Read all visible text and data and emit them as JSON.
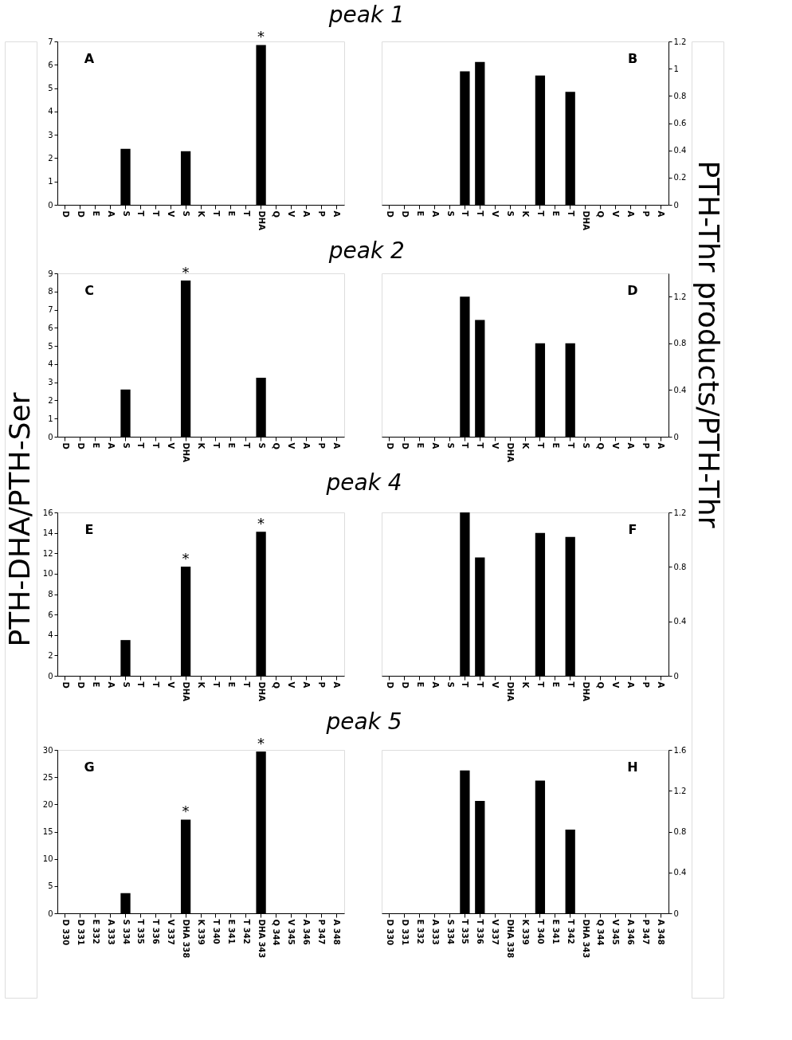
{
  "chart_data": [
    {
      "type": "bar",
      "title": "peak 1",
      "annotations": [
        "A"
      ],
      "categories": [
        "D",
        "D",
        "E",
        "A",
        "S",
        "T",
        "T",
        "V",
        "S",
        "K",
        "T",
        "E",
        "T",
        "DHA",
        "Q",
        "V",
        "A",
        "P",
        "A"
      ],
      "ylim": [
        0,
        7
      ],
      "yticks": [
        0,
        1,
        2,
        3,
        4,
        5,
        6,
        7
      ],
      "grid": false,
      "series": [
        {
          "color": "#000000",
          "values": [
            0,
            0,
            0,
            0,
            2.4,
            0,
            0,
            0,
            2.3,
            0,
            0,
            0,
            0,
            6.85,
            0,
            0,
            0,
            0,
            0
          ],
          "value_labels": [
            null,
            null,
            null,
            null,
            null,
            null,
            null,
            null,
            null,
            null,
            null,
            null,
            null,
            "*",
            null,
            null,
            null,
            null,
            null
          ]
        }
      ]
    },
    {
      "type": "bar",
      "annotations": [
        "B"
      ],
      "categories": [
        "D",
        "D",
        "E",
        "A",
        "S",
        "T",
        "T",
        "V",
        "S",
        "K",
        "T",
        "E",
        "T",
        "DHA",
        "Q",
        "V",
        "A",
        "P",
        "A"
      ],
      "y2lim": [
        0,
        1.2
      ],
      "y2ticks": [
        0,
        0.2,
        0.4,
        0.6,
        0.8,
        1,
        1.2
      ],
      "grid": false,
      "series": [
        {
          "axis": "y2",
          "color": "#000000",
          "values": [
            0,
            0,
            0,
            0,
            0,
            0.98,
            1.05,
            0,
            0,
            0,
            0.95,
            0,
            0.83,
            0,
            0,
            0,
            0,
            0,
            0
          ]
        }
      ]
    },
    {
      "type": "bar",
      "title": "peak 2",
      "ylabel": "PTH-DHA/PTH-Ser",
      "annotations": [
        "C"
      ],
      "categories": [
        "D",
        "D",
        "E",
        "A",
        "S",
        "T",
        "T",
        "V",
        "DHA",
        "K",
        "T",
        "E",
        "T",
        "S",
        "Q",
        "V",
        "A",
        "P",
        "A"
      ],
      "ylim": [
        0,
        9
      ],
      "yticks": [
        0,
        1,
        2,
        3,
        4,
        5,
        6,
        7,
        8,
        9
      ],
      "grid": false,
      "series": [
        {
          "color": "#000000",
          "values": [
            0,
            0,
            0,
            0,
            2.6,
            0,
            0,
            0,
            8.6,
            0,
            0,
            0,
            0,
            3.25,
            0,
            0,
            0,
            0,
            0
          ],
          "value_labels": [
            null,
            null,
            null,
            null,
            null,
            null,
            null,
            null,
            "*",
            null,
            null,
            null,
            null,
            null,
            null,
            null,
            null,
            null,
            null
          ]
        }
      ]
    },
    {
      "type": "bar",
      "y2label": "PTH-Thr products/PTH-Thr",
      "annotations": [
        "D"
      ],
      "categories": [
        "D",
        "D",
        "E",
        "A",
        "S",
        "T",
        "T",
        "V",
        "DHA",
        "K",
        "T",
        "E",
        "T",
        "S",
        "Q",
        "V",
        "A",
        "P",
        "A"
      ],
      "y2lim": [
        0,
        1.4
      ],
      "y2ticks": [
        0,
        0.4,
        0.8,
        1.2
      ],
      "grid": false,
      "series": [
        {
          "axis": "y2",
          "color": "#000000",
          "values": [
            0,
            0,
            0,
            0,
            0,
            1.2,
            1.0,
            0,
            0,
            0,
            0.8,
            0,
            0.8,
            0,
            0,
            0,
            0,
            0,
            0
          ]
        }
      ]
    },
    {
      "type": "bar",
      "title": "peak 4",
      "annotations": [
        "E"
      ],
      "categories": [
        "D",
        "D",
        "E",
        "A",
        "S",
        "T",
        "T",
        "V",
        "DHA",
        "K",
        "T",
        "E",
        "T",
        "DHA",
        "Q",
        "V",
        "A",
        "P",
        "A"
      ],
      "ylim": [
        0,
        16
      ],
      "yticks": [
        0,
        2,
        4,
        6,
        8,
        10,
        12,
        14,
        16
      ],
      "grid": false,
      "series": [
        {
          "color": "#000000",
          "values": [
            0,
            0,
            0,
            0,
            3.5,
            0,
            0,
            0,
            10.7,
            0,
            0,
            0,
            0,
            14.1,
            0,
            0,
            0,
            0,
            0
          ],
          "value_labels": [
            null,
            null,
            null,
            null,
            null,
            null,
            null,
            null,
            "*",
            null,
            null,
            null,
            null,
            "*",
            null,
            null,
            null,
            null,
            null
          ]
        }
      ]
    },
    {
      "type": "bar",
      "annotations": [
        "F"
      ],
      "categories": [
        "D",
        "D",
        "E",
        "A",
        "S",
        "T",
        "T",
        "V",
        "DHA",
        "K",
        "T",
        "E",
        "T",
        "DHA",
        "Q",
        "V",
        "A",
        "P",
        "A"
      ],
      "y2lim": [
        0,
        1.2
      ],
      "y2ticks": [
        0,
        0.4,
        0.8,
        1.2
      ],
      "grid": false,
      "series": [
        {
          "axis": "y2",
          "color": "#000000",
          "values": [
            0,
            0,
            0,
            0,
            0,
            1.2,
            0.87,
            0,
            0,
            0,
            1.05,
            0,
            1.02,
            0,
            0,
            0,
            0,
            0,
            0
          ]
        }
      ]
    },
    {
      "type": "bar",
      "title": "peak 5",
      "annotations": [
        "G"
      ],
      "categories": [
        "D 330",
        "D 331",
        "E 332",
        "A 333",
        "S 334",
        "T 335",
        "T 336",
        "V 337",
        "DHA 338",
        "K 339",
        "T 340",
        "E 341",
        "T 342",
        "DHA 343",
        "Q 344",
        "V 345",
        "A 346",
        "P 347",
        "A 348"
      ],
      "ylim": [
        0,
        30
      ],
      "yticks": [
        0,
        5,
        10,
        15,
        20,
        25,
        30
      ],
      "grid": false,
      "series": [
        {
          "color": "#000000",
          "values": [
            0,
            0,
            0,
            0,
            3.7,
            0,
            0,
            0,
            17.2,
            0,
            0,
            0,
            0,
            29.7,
            0,
            0,
            0,
            0,
            0
          ],
          "value_labels": [
            null,
            null,
            null,
            null,
            null,
            null,
            null,
            null,
            "*",
            null,
            null,
            null,
            null,
            "*",
            null,
            null,
            null,
            null,
            null
          ]
        }
      ]
    },
    {
      "type": "bar",
      "annotations": [
        "H"
      ],
      "categories": [
        "D 330",
        "D 331",
        "E 332",
        "A 333",
        "S 334",
        "T 335",
        "T 336",
        "V 337",
        "DHA 338",
        "K 339",
        "T 340",
        "E 341",
        "T 342",
        "DHA 343",
        "Q 344",
        "V 345",
        "A 346",
        "P 347",
        "A 348"
      ],
      "y2lim": [
        0,
        1.6
      ],
      "y2ticks": [
        0,
        0.4,
        0.8,
        1.2,
        1.6
      ],
      "grid": false,
      "series": [
        {
          "axis": "y2",
          "color": "#000000",
          "values": [
            0,
            0,
            0,
            0,
            0,
            1.4,
            1.1,
            0,
            0,
            0,
            1.3,
            0,
            0.82,
            0,
            0,
            0,
            0,
            0,
            0
          ]
        }
      ]
    }
  ]
}
